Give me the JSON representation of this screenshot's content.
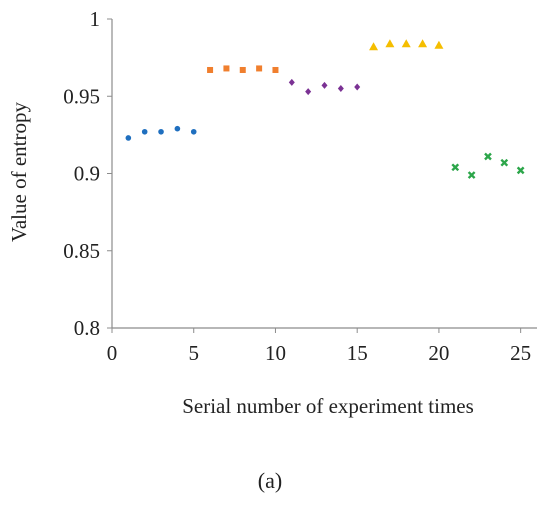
{
  "chart_data": {
    "type": "scatter",
    "title": "",
    "xlabel": "Serial number of experiment times",
    "ylabel": "Value of entropy",
    "xlim": [
      0,
      26
    ],
    "ylim": [
      0.8,
      1.0
    ],
    "x_ticks": [
      0,
      5,
      10,
      15,
      20,
      25
    ],
    "y_ticks": [
      0.8,
      0.85,
      0.9,
      0.95,
      1.0
    ],
    "x_tick_labels": [
      "0",
      "5",
      "10",
      "15",
      "20",
      "25"
    ],
    "y_tick_labels": [
      "0.8",
      "0.85",
      "0.9",
      "0.95",
      "1"
    ],
    "grid": false,
    "legend": "none",
    "series": [
      {
        "marker": "circle",
        "color": "#1f6fbf",
        "x": [
          1,
          2,
          3,
          4,
          5
        ],
        "y": [
          0.923,
          0.927,
          0.927,
          0.929,
          0.927
        ]
      },
      {
        "marker": "square",
        "color": "#f07f2e",
        "x": [
          6,
          7,
          8,
          9,
          10
        ],
        "y": [
          0.967,
          0.968,
          0.967,
          0.968,
          0.967
        ]
      },
      {
        "marker": "diamond",
        "color": "#7b3294",
        "x": [
          11,
          12,
          13,
          14,
          15
        ],
        "y": [
          0.959,
          0.953,
          0.957,
          0.955,
          0.956
        ]
      },
      {
        "marker": "triangle",
        "color": "#f5be00",
        "x": [
          16,
          17,
          18,
          19,
          20
        ],
        "y": [
          0.982,
          0.984,
          0.984,
          0.984,
          0.983
        ]
      },
      {
        "marker": "x",
        "color": "#2ca64a",
        "x": [
          21,
          22,
          23,
          24,
          25
        ],
        "y": [
          0.904,
          0.899,
          0.911,
          0.907,
          0.902
        ]
      }
    ]
  },
  "caption": {
    "label": "(a)"
  }
}
